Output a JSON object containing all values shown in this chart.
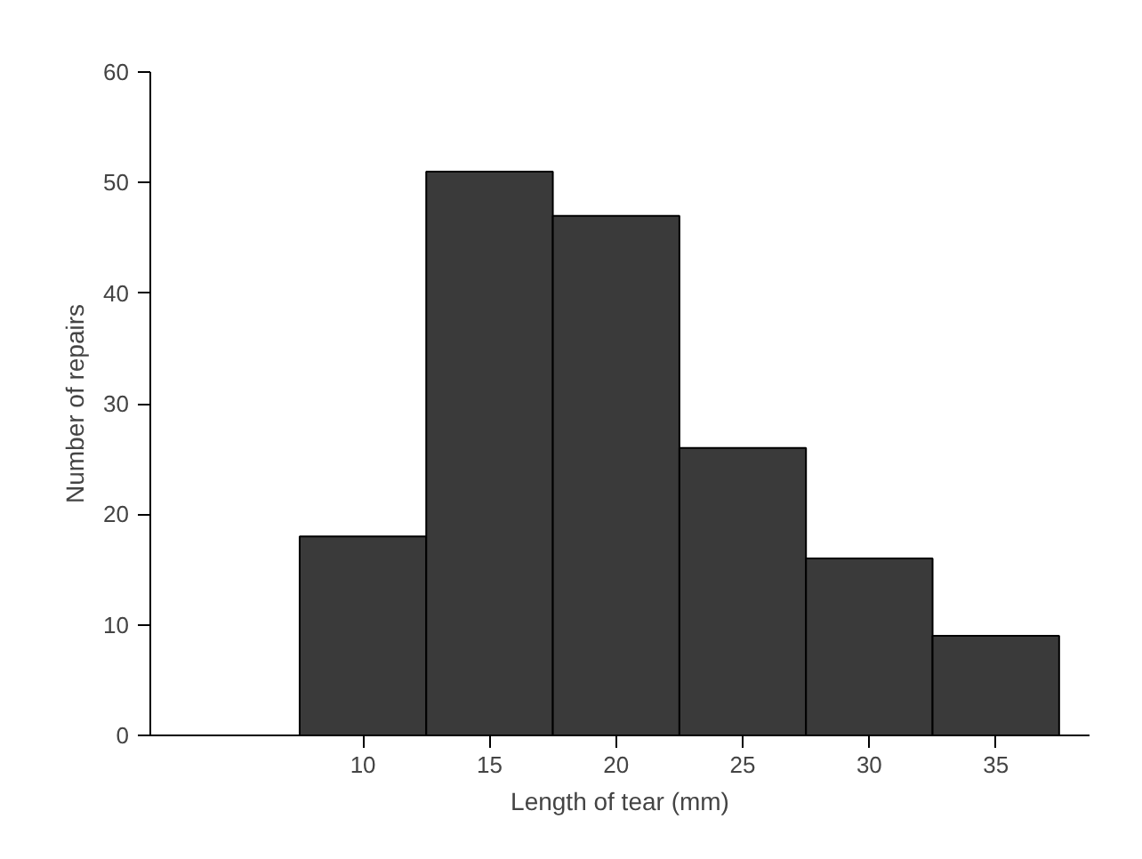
{
  "chart_data": {
    "type": "histogram",
    "xlabel": "Length of tear (mm)",
    "ylabel": "Number of repairs",
    "bins": [
      7.5,
      12.5,
      17.5,
      22.5,
      27.5,
      32.5,
      37.5
    ],
    "values": [
      18,
      51,
      47,
      26,
      16,
      9
    ],
    "color": "#3a3a3a",
    "xlim": [
      1.6,
      38.7
    ],
    "xticks": [
      10,
      15,
      20,
      25,
      30,
      35
    ],
    "ylim": [
      0,
      60
    ],
    "yticks": [
      0,
      10,
      20,
      30,
      40,
      50,
      60
    ],
    "grid": false
  }
}
